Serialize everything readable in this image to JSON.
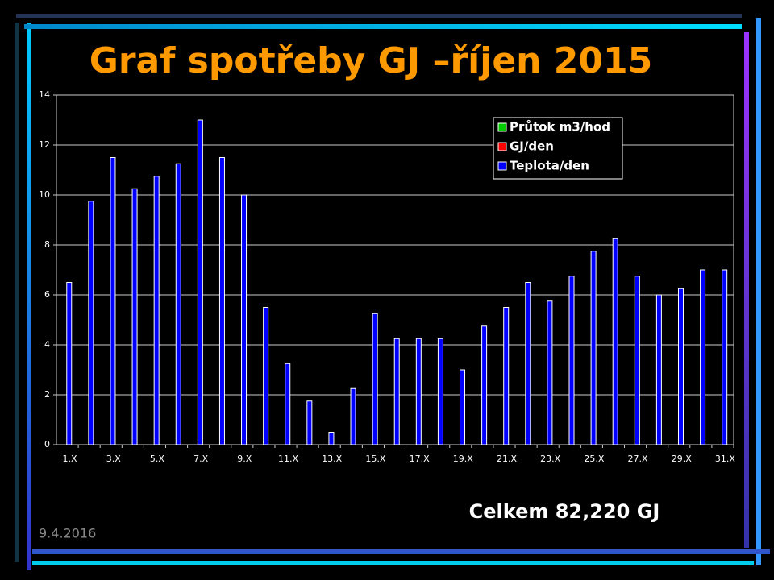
{
  "chart_data": {
    "type": "bar",
    "title": "Graf spotřeby GJ –říjen 2015",
    "categories": [
      "1.X",
      null,
      "3.X",
      null,
      "5.X",
      null,
      "7.X",
      null,
      "9.X",
      null,
      "11.X",
      null,
      "13.X",
      null,
      "15.X",
      null,
      "17.X",
      null,
      "19.X",
      null,
      "21.X",
      null,
      "23.X",
      null,
      "25.X",
      null,
      "27.X",
      null,
      "29.X",
      null,
      "31.X"
    ],
    "series": [
      {
        "name": "Průtok m3/hod",
        "color": "#00cc00",
        "values": [
          null,
          null,
          null,
          null,
          null,
          null,
          null,
          null,
          null,
          null,
          null,
          null,
          null,
          null,
          null,
          null,
          null,
          null,
          null,
          null,
          null,
          null,
          null,
          null,
          null,
          null,
          null,
          null,
          null,
          null,
          null
        ]
      },
      {
        "name": "GJ/den",
        "color": "#ff0000",
        "values": [
          null,
          null,
          null,
          null,
          null,
          null,
          null,
          null,
          null,
          null,
          null,
          null,
          null,
          null,
          null,
          null,
          null,
          null,
          null,
          null,
          null,
          null,
          null,
          null,
          null,
          null,
          null,
          null,
          null,
          null,
          null
        ]
      },
      {
        "name": "Teplota/den",
        "color": "#0000ff",
        "values": [
          6.5,
          9.75,
          11.5,
          10.25,
          10.75,
          11.25,
          13,
          11.5,
          10,
          5.5,
          3.25,
          1.75,
          0.5,
          2.25,
          5.25,
          4.25,
          4.25,
          4.25,
          3,
          4.75,
          5.5,
          6.5,
          5.75,
          6.75,
          7.75,
          8.25,
          6.75,
          6,
          6.25,
          7,
          7
        ]
      }
    ],
    "ylim": [
      0,
      14
    ],
    "yticks": [
      0,
      2,
      4,
      6,
      8,
      10,
      12,
      14
    ],
    "grid": true,
    "total": "Celkem 82,220 GJ",
    "date": "9.4.2016"
  }
}
